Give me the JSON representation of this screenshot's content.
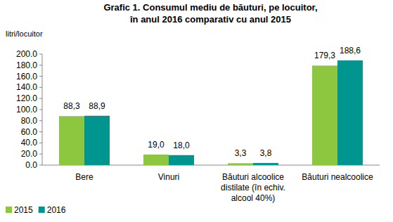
{
  "chart_data": {
    "type": "bar",
    "title": "Grafic 1. Consumul mediu de băuturi, pe locuitor,",
    "subtitle": "în anul 2016 comparativ cu anul 2015",
    "y_label": "litri/locuitor",
    "categories": [
      "Bere",
      "Vinuri",
      "Băuturi alcoolice distilate (în echiv. alcool 40%)",
      "Băuturi nealcoolice"
    ],
    "series": [
      {
        "name": "2015",
        "color": "#8dc63f",
        "values": [
          88.3,
          19.0,
          3.3,
          179.3
        ],
        "value_labels": [
          "88,3",
          "19,0",
          "3,3",
          "179,3"
        ]
      },
      {
        "name": "2016",
        "color": "#00968f",
        "values": [
          88.9,
          18.0,
          3.8,
          188.6
        ],
        "value_labels": [
          "88,9",
          "18,0",
          "3,8",
          "188,6"
        ]
      }
    ],
    "ylim": [
      0,
      200
    ],
    "yticks": [
      {
        "value": 0,
        "label": "0.0"
      },
      {
        "value": 20,
        "label": "20.0"
      },
      {
        "value": 40,
        "label": "40.0"
      },
      {
        "value": 60,
        "label": "60.0"
      },
      {
        "value": 80,
        "label": "80.0"
      },
      {
        "value": 100,
        "label": "100.0"
      },
      {
        "value": 120,
        "label": "120.0"
      },
      {
        "value": 140,
        "label": "140.0"
      },
      {
        "value": 160,
        "label": "160.0"
      },
      {
        "value": 180,
        "label": "180.0"
      },
      {
        "value": 200,
        "label": "200.0"
      }
    ],
    "grid": false,
    "data_labels": true,
    "legend": "bottom-left"
  }
}
